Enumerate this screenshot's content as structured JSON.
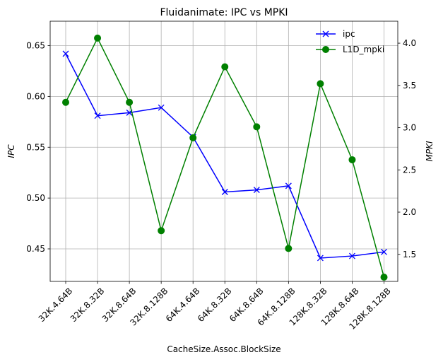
{
  "chart_data": {
    "type": "line",
    "title": "Fluidanimate: IPC vs MPKI",
    "xlabel": "CacheSize.Assoc.BlockSize",
    "categories": [
      "32K.4.64B",
      "32K.8.32B",
      "32K.8.64B",
      "32K.8.128B",
      "64K.4.64B",
      "64K.8.32B",
      "64K.8.64B",
      "64K.8.128B",
      "128K.8.32B",
      "128K.8.64B",
      "128K.8.128B"
    ],
    "left_axis": {
      "label": "IPC",
      "ylim": [
        0.418,
        0.674
      ],
      "ticks": [
        0.45,
        0.5,
        0.55,
        0.6,
        0.65
      ],
      "tick_labels": [
        "0.45",
        "0.50",
        "0.55",
        "0.60",
        "0.65"
      ]
    },
    "right_axis": {
      "label": "MPKI",
      "ylim": [
        1.18,
        4.26
      ],
      "ticks": [
        1.5,
        2.0,
        2.5,
        3.0,
        3.5,
        4.0
      ],
      "tick_labels": [
        "1.5",
        "2.0",
        "2.5",
        "3.0",
        "3.5",
        "4.0"
      ]
    },
    "series": [
      {
        "name": "ipc",
        "axis": "left",
        "color": "#0000ff",
        "marker": "x",
        "values": [
          0.642,
          0.581,
          0.584,
          0.589,
          0.56,
          0.506,
          0.508,
          0.512,
          0.441,
          0.443,
          0.447
        ]
      },
      {
        "name": "L1D_mpki",
        "axis": "right",
        "color": "#008000",
        "marker": "circle",
        "values": [
          3.3,
          4.06,
          3.3,
          1.78,
          2.88,
          3.72,
          3.01,
          1.57,
          3.52,
          2.62,
          1.23
        ]
      }
    ],
    "grid": true,
    "legend_position": "top-right"
  }
}
